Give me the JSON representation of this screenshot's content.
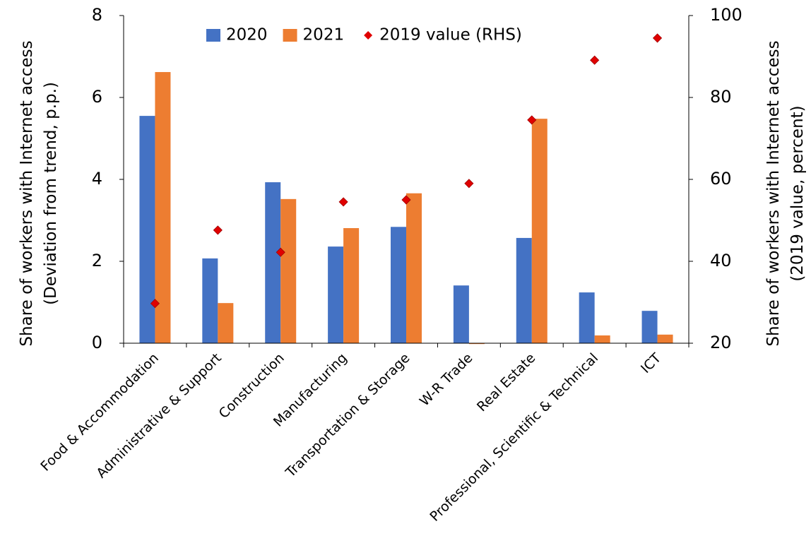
{
  "chart_data": {
    "type": "bar",
    "categories": [
      "Food & Accommodation",
      "Administrative & Support",
      "Construction",
      "Manufacturing",
      "Transportation & Storage",
      "W-R Trade",
      "Real Estate",
      "Professional, Scientific & Technical",
      "ICT"
    ],
    "series": [
      {
        "name": "2020",
        "type": "bar",
        "color": "#4472c4",
        "values": [
          5.55,
          2.07,
          3.93,
          2.36,
          2.84,
          1.41,
          2.57,
          1.24,
          0.79
        ]
      },
      {
        "name": "2021",
        "type": "bar",
        "color": "#ed7d31",
        "values": [
          6.62,
          0.98,
          3.52,
          2.81,
          3.66,
          -0.02,
          5.48,
          0.19,
          0.21
        ]
      },
      {
        "name": "2019 value (RHS)",
        "type": "scatter",
        "axis": "y2",
        "color": "#e00000",
        "values": [
          29.7,
          47.6,
          42.2,
          54.5,
          55.0,
          59.0,
          74.5,
          89.1,
          94.5
        ]
      }
    ],
    "ylabel": [
      "Share of workers with Internet access",
      "(Deviation from trend, p.p.)"
    ],
    "y2label": [
      "Share of workers with Internet access",
      "(2019 value, percent)"
    ],
    "ylim": [
      0,
      8
    ],
    "yticks": [
      0,
      2,
      4,
      6,
      8
    ],
    "y2lim": [
      20,
      100
    ],
    "y2ticks": [
      20,
      40,
      60,
      80,
      100
    ],
    "legend": "top"
  }
}
